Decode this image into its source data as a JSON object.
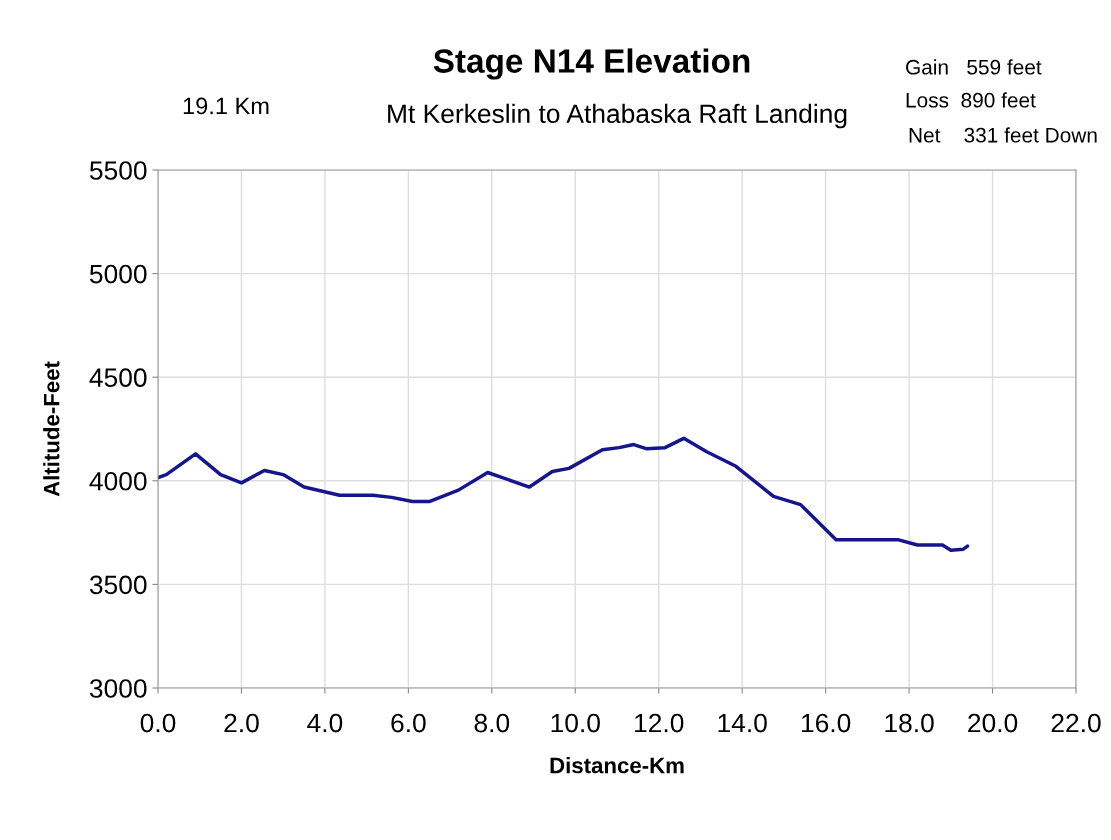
{
  "chart_data": {
    "type": "line",
    "title": "Stage N14 Elevation",
    "subtitle": "Mt Kerkeslin to Athabaska Raft Landing",
    "xlabel": "Distance-Km",
    "ylabel": "Altitude-Feet",
    "annotations": [
      "19.1 Km",
      "Gain   559 feet",
      "Loss  890 feet",
      "Net    331 feet Down"
    ],
    "series": [
      {
        "color": "#16168c",
        "x": [
          0,
          0.2,
          0.9,
          1.5,
          2.0,
          2.55,
          3.0,
          3.5,
          4.35,
          5.15,
          5.6,
          6.1,
          6.5,
          7.2,
          7.9,
          8.9,
          9.45,
          9.85,
          10.65,
          11.05,
          11.4,
          11.7,
          12.15,
          12.6,
          13.15,
          13.85,
          14.75,
          15.4,
          16.25,
          17.75,
          18.2,
          18.8,
          19.0,
          19.3,
          19.4
        ],
        "values": [
          4015,
          4030,
          4130,
          4030,
          3990,
          4050,
          4030,
          3970,
          3930,
          3930,
          3920,
          3900,
          3900,
          3955,
          4040,
          3970,
          4045,
          4060,
          4150,
          4160,
          4175,
          4155,
          4160,
          4205,
          4140,
          4070,
          3925,
          3885,
          3715,
          3715,
          3690,
          3690,
          3665,
          3670,
          3685
        ]
      }
    ],
    "xlim": [
      0,
      22
    ],
    "xticks": [
      {
        "value": 0,
        "label": "0.0"
      },
      {
        "value": 2,
        "label": "2.0"
      },
      {
        "value": 4,
        "label": "4.0"
      },
      {
        "value": 6,
        "label": "6.0"
      },
      {
        "value": 8,
        "label": "8.0"
      },
      {
        "value": 10,
        "label": "10.0"
      },
      {
        "value": 12,
        "label": "12.0"
      },
      {
        "value": 14,
        "label": "14.0"
      },
      {
        "value": 16,
        "label": "16.0"
      },
      {
        "value": 18,
        "label": "18.0"
      },
      {
        "value": 20,
        "label": "20.0"
      },
      {
        "value": 22,
        "label": "22.0"
      }
    ],
    "ylim": [
      3000,
      5500
    ],
    "yticks": [
      3000,
      3500,
      4000,
      4500,
      5000,
      5500
    ],
    "grid": true,
    "line_style": "solid",
    "marker": "none"
  }
}
